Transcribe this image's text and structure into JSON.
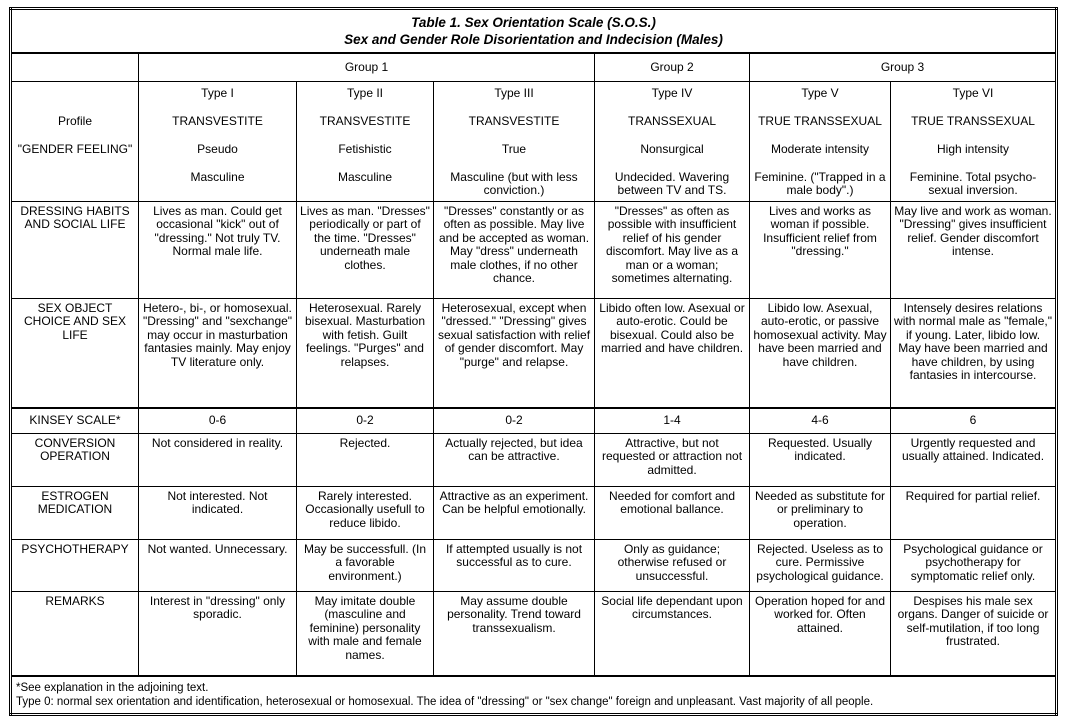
{
  "title": "Table 1. Sex Orientation Scale (S.O.S.)",
  "subtitle": "Sex and Gender Role Disorientation and Indecision (Males)",
  "groups": [
    "Group 1",
    "Group 2",
    "Group 3"
  ],
  "profile_labels": [
    "",
    "Profile",
    "\"GENDER FEELING\"",
    ""
  ],
  "types": [
    {
      "type": "Type I",
      "name": "TRANSVESTITE",
      "kind": "Pseudo",
      "feeling": "Masculine"
    },
    {
      "type": "Type II",
      "name": "TRANSVESTITE",
      "kind": "Fetishistic",
      "feeling": "Masculine"
    },
    {
      "type": "Type III",
      "name": "TRANSVESTITE",
      "kind": "True",
      "feeling": "Masculine (but with less conviction.)"
    },
    {
      "type": "Type IV",
      "name": "TRANSSEXUAL",
      "kind": "Nonsurgical",
      "feeling": "Undecided. Wavering between TV and TS."
    },
    {
      "type": "Type V",
      "name": "TRUE TRANSSEXUAL",
      "kind": "Moderate intensity",
      "feeling": "Feminine. (\"Trapped in a male body\".)"
    },
    {
      "type": "Type VI",
      "name": "TRUE TRANSSEXUAL",
      "kind": "High intensity",
      "feeling": "Feminine. Total psycho-sexual inversion."
    }
  ],
  "rows": [
    {
      "label": "DRESSING HABITS AND SOCIAL LIFE",
      "cells": [
        "Lives as man. Could get occasional \"kick\" out of \"dressing.\" Not truly TV. Normal male life.",
        "Lives as man. \"Dresses\" periodically or part of the time. \"Dresses\" underneath male clothes.",
        "\"Dresses\" constantly or as often as possible. May live and be accepted as woman. May \"dress\" underneath male clothes, if no other chance.",
        "\"Dresses\" as often as possible with insufficient relief of his gender discomfort. May live as a man or a woman; sometimes alternating.",
        "Lives and works as woman if possible. Insufficient relief from \"dressing.\"",
        "May live and work as woman. \"Dressing\" gives insufficient relief. Gender discomfort intense."
      ]
    },
    {
      "label": "SEX OBJECT CHOICE AND SEX LIFE",
      "cells": [
        "Hetero-, bi-, or homosexual. \"Dressing\" and \"sexchange\" may occur in masturbation fantasies mainly. May enjoy TV literature only.",
        "Heterosexual. Rarely bisexual. Masturbation with fetish. Guilt feelings. \"Purges\" and relapses.",
        "Heterosexual, except when \"dressed.\" \"Dressing\" gives sexual satisfaction with relief of gender discomfort. May \"purge\" and relapse.",
        "Libido often low. Asexual or auto-erotic. Could be bisexual. Could also be married and have children.",
        "Libido low. Asexual, auto-erotic, or passive homosexual activity. May have been married and have children.",
        "Intensely desires relations with normal male as \"female,\" if young. Later, libido low. May have been married and have children, by using fantasies in intercourse."
      ]
    },
    {
      "label": "KINSEY SCALE*",
      "cells": [
        "0-6",
        "0-2",
        "0-2",
        "1-4",
        "4-6",
        "6"
      ]
    },
    {
      "label": "CONVERSION OPERATION",
      "cells": [
        "Not considered in reality.",
        "Rejected.",
        "Actually rejected, but idea can be attractive.",
        "Attractive, but not requested or attraction not admitted.",
        "Requested. Usually indicated.",
        "Urgently requested and usually attained. Indicated."
      ]
    },
    {
      "label": "ESTROGEN MEDICATION",
      "cells": [
        "Not interested. Not indicated.",
        "Rarely interested. Occasionally usefull to reduce libido.",
        "Attractive as an experiment. Can be helpful emotionally.",
        "Needed for comfort and emotional ballance.",
        "Needed as substitute for or preliminary to operation.",
        "Required for partial relief."
      ]
    },
    {
      "label": "PSYCHOTHERAPY",
      "cells": [
        "Not wanted. Unnecessary.",
        "May be successfull. (In a favorable environment.)",
        "If attempted usually is not successful as to cure.",
        "Only as guidance; otherwise refused or unsuccessful.",
        "Rejected. Useless as to cure. Permissive psychological guidance.",
        "Psychological guidance or psychotherapy for symptomatic relief only."
      ]
    },
    {
      "label": "REMARKS",
      "cells": [
        "Interest in \"dressing\" only sporadic.",
        "May imitate double (masculine and feminine) personality with male and female names.",
        "May assume double personality. Trend toward transsexualism.",
        "Social life dependant upon circumstances.",
        "Operation hoped for and worked for. Often attained.",
        "Despises his male sex organs. Danger of suicide or self-mutilation, if too long frustrated."
      ]
    }
  ],
  "footnotes": [
    "*See explanation in the adjoining text.",
    "Type 0: normal sex orientation and identification, heterosexual or homosexual. The idea of \"dressing\" or \"sex change\" foreign and unpleasant. Vast majority of all people."
  ]
}
